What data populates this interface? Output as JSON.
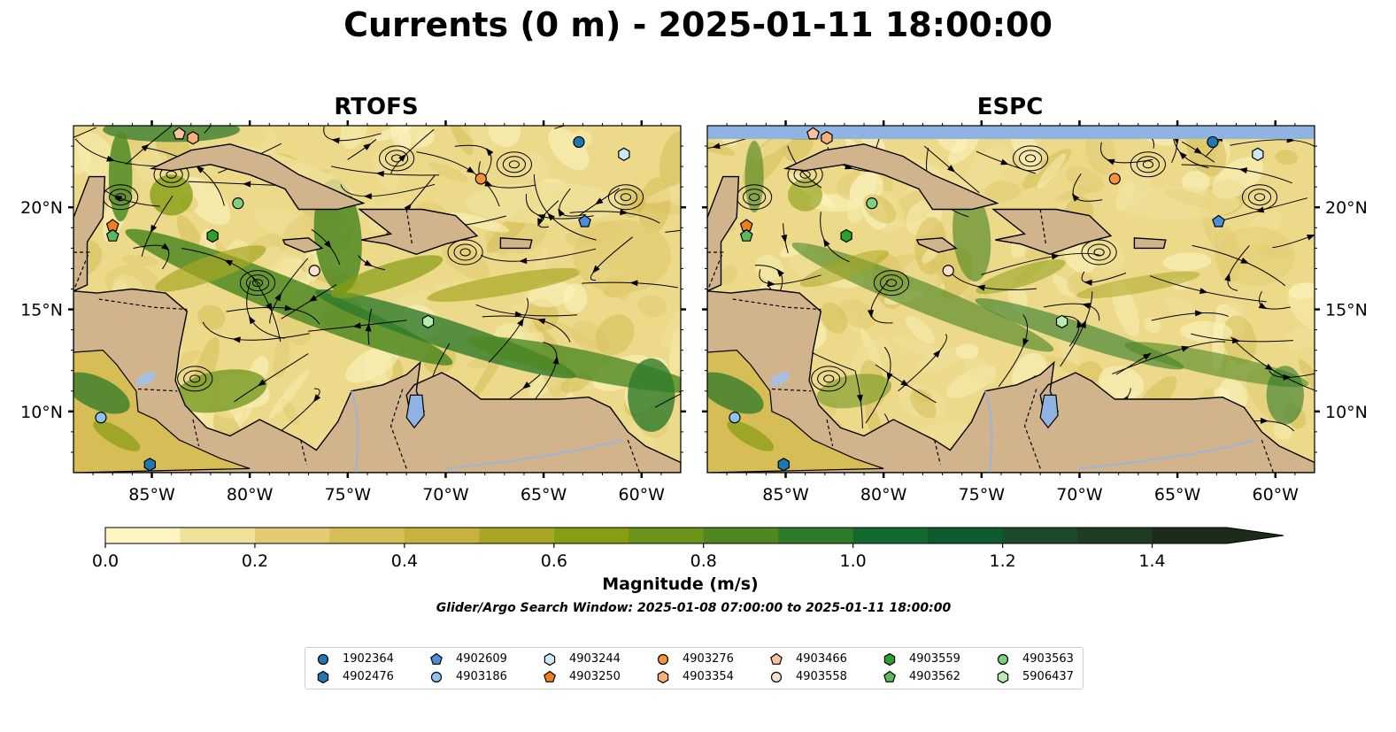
{
  "title": "Currents (0 m) - 2025-01-11 18:00:00",
  "panels": [
    {
      "title": "RTOFS",
      "has_top_band": false,
      "lat_labels_side": "left"
    },
    {
      "title": "ESPC",
      "has_top_band": true,
      "lat_labels_side": "right"
    }
  ],
  "map": {
    "lon_range": [
      -89,
      -58
    ],
    "lat_range": [
      7,
      24
    ],
    "lon_ticks": [
      -85,
      -80,
      -75,
      -70,
      -65,
      -60
    ],
    "lon_tick_labels": [
      "85°W",
      "80°W",
      "75°W",
      "70°W",
      "65°W",
      "60°W"
    ],
    "lat_ticks": [
      10,
      15,
      20
    ],
    "lat_tick_labels": [
      "10°N",
      "15°N",
      "20°N"
    ],
    "land_color": "#d2b48c",
    "water_band_color": "#8fb4e3"
  },
  "colorbar": {
    "label": "Magnitude (m/s)",
    "min": 0.0,
    "max": 1.5,
    "extend": "max",
    "tick_values": [
      0.0,
      0.2,
      0.4,
      0.6,
      0.8,
      1.0,
      1.2,
      1.4
    ],
    "tick_labels": [
      "0.0",
      "0.2",
      "0.4",
      "0.6",
      "0.8",
      "1.0",
      "1.2",
      "1.4"
    ],
    "colors": [
      "#fdf6c3",
      "#f0e19a",
      "#e2cb72",
      "#d6bd55",
      "#c9b13f",
      "#a8a625",
      "#879d14",
      "#6d941a",
      "#4f8822",
      "#2e7a2a",
      "#136a31",
      "#0f5a2e",
      "#1a4a2a",
      "#1f3b22",
      "#1d2b1b"
    ]
  },
  "search_window": "Glider/Argo Search Window: 2025-01-08 07:00:00 to 2025-01-11 18:00:00",
  "floats": [
    {
      "id": "1902364",
      "marker": "circle",
      "color": "#1f77b4",
      "lon": -63.2,
      "lat": 23.2
    },
    {
      "id": "4902476",
      "marker": "hexagon",
      "color": "#1f77b4",
      "lon": -85.1,
      "lat": 7.4
    },
    {
      "id": "4902609",
      "marker": "pentagon",
      "color": "#4a90d9",
      "lon": -62.9,
      "lat": 19.3
    },
    {
      "id": "4903186",
      "marker": "circle",
      "color": "#8ec3ea",
      "lon": -87.6,
      "lat": 9.7
    },
    {
      "id": "4903244",
      "marker": "hexagon",
      "color": "#cde8f8",
      "lon": -60.9,
      "lat": 22.6
    },
    {
      "id": "4903250",
      "marker": "pentagon",
      "color": "#f07e1a",
      "lon": -87.0,
      "lat": 19.1
    },
    {
      "id": "4903276",
      "marker": "circle",
      "color": "#f5923e",
      "lon": -68.2,
      "lat": 21.4
    },
    {
      "id": "4903354",
      "marker": "hexagon",
      "color": "#f7b07a",
      "lon": -82.9,
      "lat": 23.4
    },
    {
      "id": "4903466",
      "marker": "pentagon",
      "color": "#f9c19c",
      "lon": -83.6,
      "lat": 23.6
    },
    {
      "id": "4903558",
      "marker": "circle",
      "color": "#fde1c8",
      "lon": -76.7,
      "lat": 16.9
    },
    {
      "id": "4903559",
      "marker": "hexagon",
      "color": "#2ca02c",
      "lon": -81.9,
      "lat": 18.6
    },
    {
      "id": "4903562",
      "marker": "pentagon",
      "color": "#5cb85c",
      "lon": -87.0,
      "lat": 18.6
    },
    {
      "id": "4903563",
      "marker": "circle",
      "color": "#7ed07e",
      "lon": -80.6,
      "lat": 20.2
    },
    {
      "id": "5906437",
      "marker": "hexagon",
      "color": "#b6ecb0",
      "lon": -70.9,
      "lat": 14.4
    }
  ]
}
